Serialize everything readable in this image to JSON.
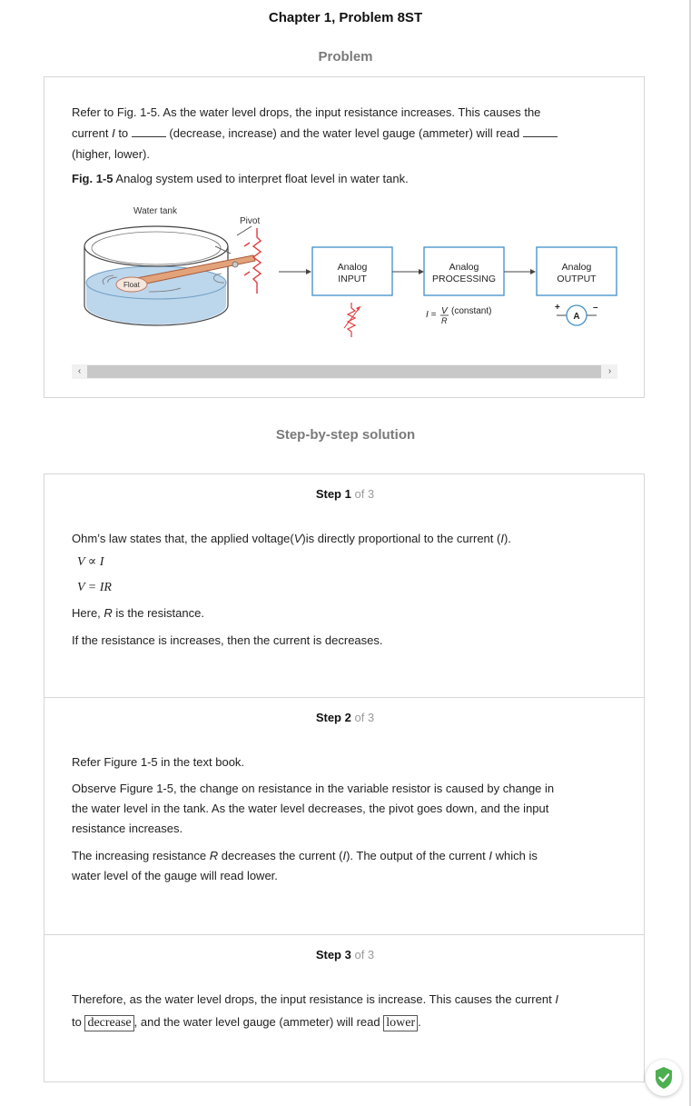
{
  "header": {
    "chapter_title": "Chapter 1, Problem 8ST",
    "problem_heading": "Problem",
    "solution_heading": "Step-by-step solution"
  },
  "problem": {
    "line1": "Refer to Fig. 1-5. As the water level drops, the input resistance increases. This causes the",
    "line2_a": "current ",
    "line2_var": "I",
    "line2_b": " to ",
    "line2_c": " (decrease, increase) and the water level gauge (ammeter) will read ",
    "line3": "(higher, lower).",
    "fig_label": "Fig. 1-5",
    "fig_caption": " Analog system used to interpret float level in water tank."
  },
  "figure": {
    "water_tank_label": "Water tank",
    "pivot_label": "Pivot",
    "float_label": "Float",
    "box1_line1": "Analog",
    "box1_line2": "INPUT",
    "box2_line1": "Analog",
    "box2_line2": "PROCESSING",
    "box3_line1": "Analog",
    "box3_line2": "OUTPUT",
    "formula_lhs": "I =",
    "formula_num": "V",
    "formula_den": "R",
    "formula_note": "(constant)",
    "meter_label": "A",
    "plus": "+",
    "minus": "–",
    "colors": {
      "water": "#bcd6ec",
      "resistor": "#e03a3e",
      "float": "#c07a5c",
      "box": "#3f8fc8"
    }
  },
  "scrollbar": {
    "left_arrow": "‹",
    "right_arrow": "›"
  },
  "steps": [
    {
      "label": "Step 1",
      "of": "of 3",
      "line1_a": "Ohm’s law states that, the applied voltage(",
      "line1_v": "V",
      "line1_b": ")is directly proportional to the current (",
      "line1_i": "I",
      "line1_c": ").",
      "eq1": "V ∝ I",
      "eq2": "V = IR",
      "here_a": "Here, ",
      "here_r": "R",
      "here_b": " is the resistance.",
      "conclusion": "If the resistance is increases, then the current is decreases."
    },
    {
      "label": "Step 2",
      "of": "of 3",
      "refer": "Refer Figure 1-5 in the text book.",
      "obs1": "Observe Figure 1-5, the change on resistance in the variable resistor is caused by change in",
      "obs2": "the water level in the tank. As the water level decreases, the pivot goes down, and the input",
      "obs3": "resistance increases.",
      "inc1_a": "The increasing resistance ",
      "inc1_r": "R",
      "inc1_b": " decreases the current (",
      "inc1_i": "I",
      "inc1_c": "). The output of the current ",
      "inc1_i2": "I",
      "inc1_d": " which is",
      "inc2": "water level of the gauge will read lower."
    },
    {
      "label": "Step 3",
      "of": "of 3",
      "line1_a": "Therefore, as the water level drops, the input resistance is increase. This causes the current ",
      "line1_i": "I",
      "line2_a": "to ",
      "answer1": "decrease",
      "line2_b": ", and the water level gauge (ammeter) will read ",
      "answer2": "lower",
      "line2_c": "."
    }
  ],
  "badge": {
    "icon": "shield-check-icon",
    "color": "#4caf50"
  }
}
